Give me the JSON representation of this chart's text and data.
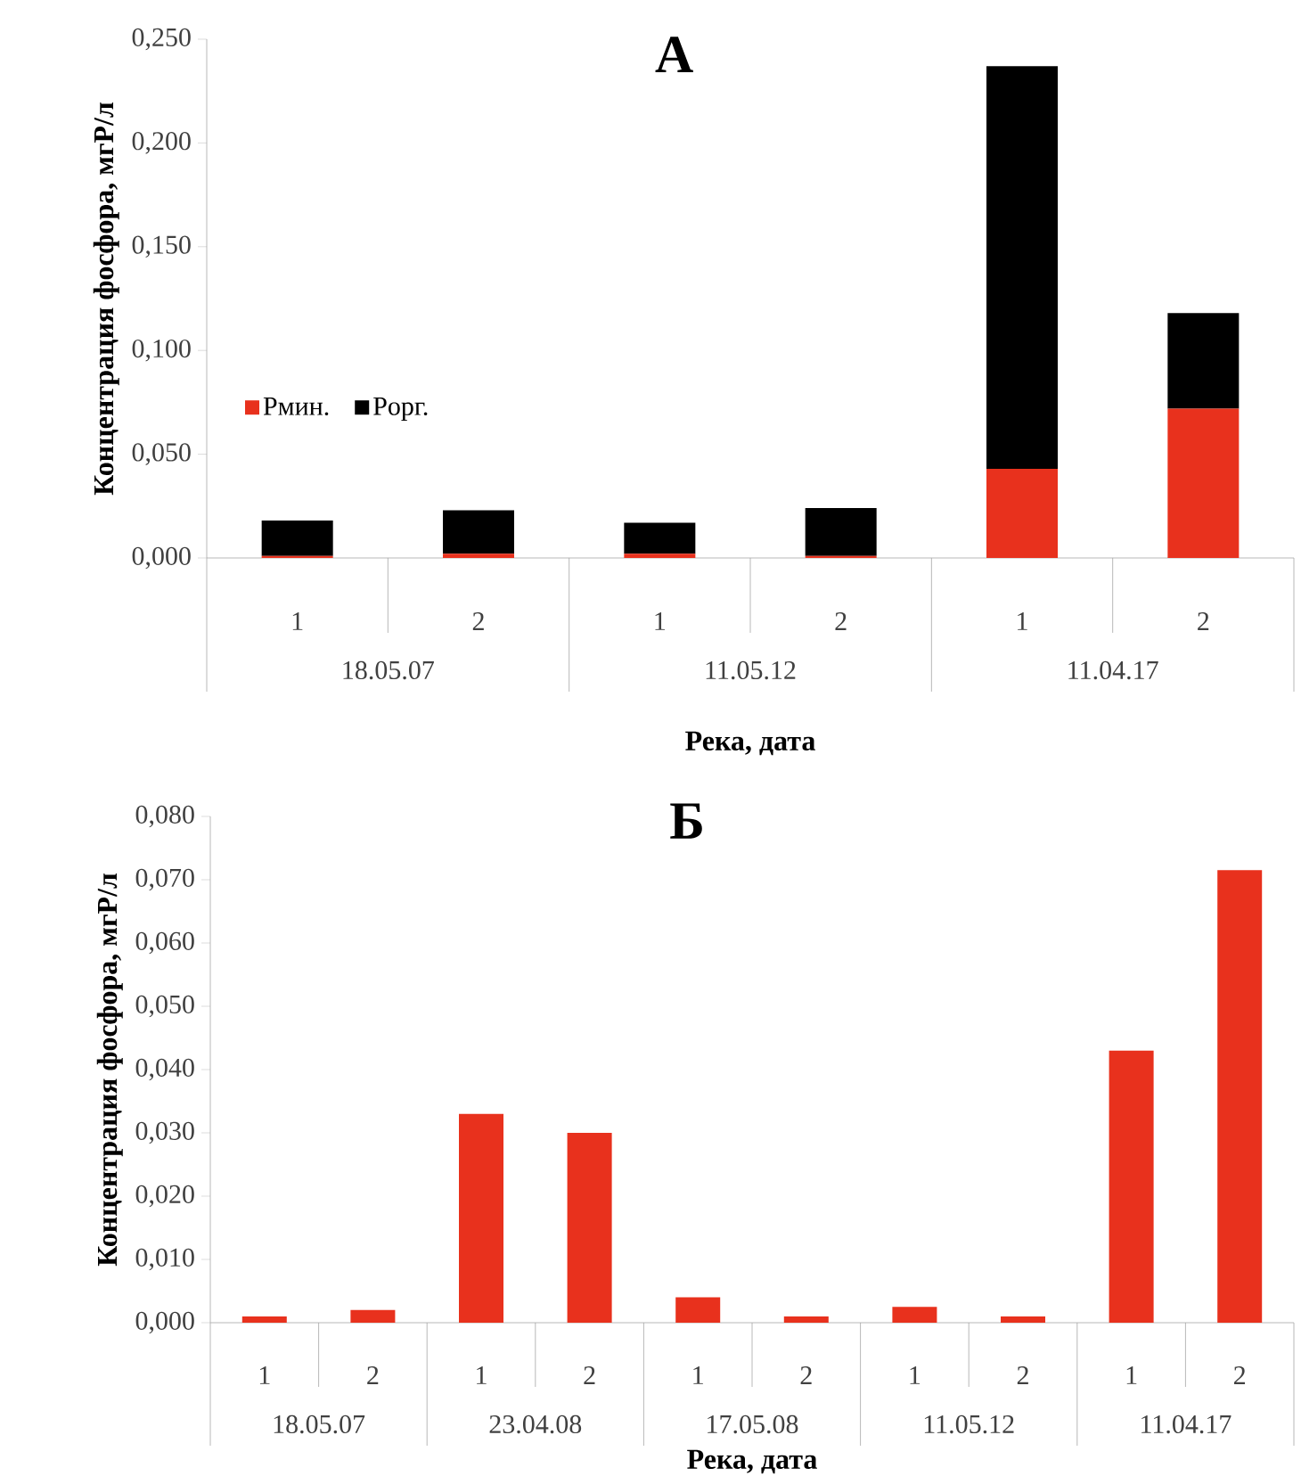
{
  "chart_data": [
    {
      "type": "bar",
      "title": "А",
      "xlabel": "Река, дата",
      "ylabel": "Концентрация фосфора, мгР/л",
      "stacked": true,
      "legend": "left",
      "grid": false,
      "categories": [
        "1",
        "2",
        "1",
        "2",
        "1",
        "2"
      ],
      "annotations": [
        "18.05.07",
        "11.05.12",
        "11.04.17"
      ],
      "series": [
        {
          "name": "Pмин.",
          "color": "#e8311d",
          "values": [
            0.001,
            0.002,
            0.002,
            0.001,
            0.043,
            0.072
          ]
        },
        {
          "name": "Pорг.",
          "color": "#000000",
          "values": [
            0.017,
            0.021,
            0.015,
            0.023,
            0.194,
            0.046
          ]
        }
      ],
      "ylim": [
        0,
        0.25
      ],
      "yticks": [
        {
          "value": 0,
          "label": "0,000"
        },
        {
          "value": 0.05,
          "label": "0,050"
        },
        {
          "value": 0.1,
          "label": "0,100"
        },
        {
          "value": 0.15,
          "label": "0,150"
        },
        {
          "value": 0.2,
          "label": "0,200"
        },
        {
          "value": 0.25,
          "label": "0,250"
        }
      ]
    },
    {
      "type": "bar",
      "title": "Б",
      "xlabel": "Река, дата",
      "ylabel": "Концентрация фосфора, мгР/л",
      "grid": false,
      "categories": [
        "1",
        "2",
        "1",
        "2",
        "1",
        "2",
        "1",
        "2",
        "1",
        "2"
      ],
      "annotations": [
        "18.05.07",
        "23.04.08",
        "17.05.08",
        "11.05.12",
        "11.04.17"
      ],
      "series": [
        {
          "color": "#e8311d",
          "values": [
            0.001,
            0.002,
            0.033,
            0.03,
            0.004,
            0.001,
            0.0025,
            0.001,
            0.043,
            0.0715
          ]
        }
      ],
      "ylim": [
        0,
        0.08
      ],
      "yticks": [
        {
          "value": 0,
          "label": "0,000"
        },
        {
          "value": 0.01,
          "label": "0,010"
        },
        {
          "value": 0.02,
          "label": "0,020"
        },
        {
          "value": 0.03,
          "label": "0,030"
        },
        {
          "value": 0.04,
          "label": "0,040"
        },
        {
          "value": 0.05,
          "label": "0,050"
        },
        {
          "value": 0.06,
          "label": "0,060"
        },
        {
          "value": 0.07,
          "label": "0,070"
        },
        {
          "value": 0.08,
          "label": "0,080"
        }
      ]
    }
  ]
}
